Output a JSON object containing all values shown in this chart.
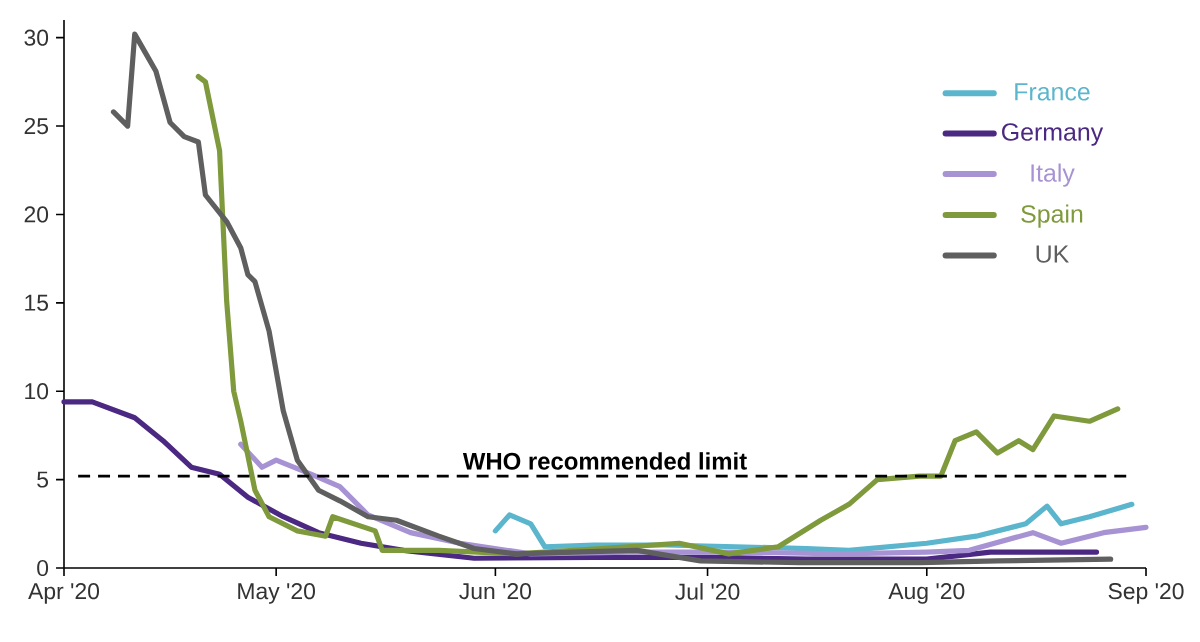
{
  "chart_data": {
    "type": "line",
    "xlim": [
      "2020-04-01",
      "2020-09-01"
    ],
    "xticks": [
      {
        "value": "2020-04-01",
        "label": "Apr '20"
      },
      {
        "value": "2020-05-01",
        "label": "May '20"
      },
      {
        "value": "2020-06-01",
        "label": "Jun '20"
      },
      {
        "value": "2020-07-01",
        "label": "Jul '20"
      },
      {
        "value": "2020-08-01",
        "label": "Aug '20"
      },
      {
        "value": "2020-09-01",
        "label": "Sep '20"
      }
    ],
    "ylim": [
      0,
      31
    ],
    "yticks": [
      0,
      5,
      10,
      15,
      20,
      25,
      30
    ],
    "grid": false,
    "legend": "top right",
    "marker": "none",
    "line_style": "solid",
    "ref_lines": [
      {
        "axis": "y",
        "value": 5.2,
        "label": "WHO recommended limit",
        "color": "#000000",
        "line_style": "dashed"
      }
    ],
    "series": [
      {
        "name": "France",
        "color": "#5bb5cc",
        "x": [
          "2020-06-01",
          "2020-06-03",
          "2020-06-06",
          "2020-06-08",
          "2020-06-15",
          "2020-06-25",
          "2020-07-05",
          "2020-07-15",
          "2020-07-21",
          "2020-08-01",
          "2020-08-08",
          "2020-08-15",
          "2020-08-18",
          "2020-08-20",
          "2020-08-24",
          "2020-08-30"
        ],
        "values": [
          2.1,
          3.0,
          2.5,
          1.2,
          1.3,
          1.3,
          1.2,
          1.1,
          1.0,
          1.4,
          1.8,
          2.5,
          3.5,
          2.5,
          2.9,
          3.6
        ]
      },
      {
        "name": "Germany",
        "color": "#4b2882",
        "x": [
          "2020-04-01",
          "2020-04-05",
          "2020-04-11",
          "2020-04-15",
          "2020-04-19",
          "2020-04-23",
          "2020-04-27",
          "2020-05-02",
          "2020-05-07",
          "2020-05-13",
          "2020-05-19",
          "2020-05-29",
          "2020-06-15",
          "2020-07-01",
          "2020-07-15",
          "2020-08-01",
          "2020-08-10",
          "2020-08-25"
        ],
        "values": [
          9.4,
          9.4,
          8.5,
          7.2,
          5.7,
          5.3,
          4.0,
          2.9,
          2.0,
          1.4,
          1.0,
          0.55,
          0.6,
          0.6,
          0.5,
          0.5,
          0.9,
          0.9
        ]
      },
      {
        "name": "Italy",
        "color": "#a793d3",
        "x": [
          "2020-04-26",
          "2020-04-29",
          "2020-05-01",
          "2020-05-06",
          "2020-05-10",
          "2020-05-14",
          "2020-05-20",
          "2020-05-27",
          "2020-06-06",
          "2020-06-20",
          "2020-07-05",
          "2020-07-20",
          "2020-08-01",
          "2020-08-07",
          "2020-08-16",
          "2020-08-20",
          "2020-08-26",
          "2020-09-01"
        ],
        "values": [
          7.0,
          5.7,
          6.1,
          5.3,
          4.6,
          3.0,
          2.0,
          1.4,
          0.8,
          0.9,
          0.9,
          0.8,
          0.9,
          1.0,
          2.0,
          1.4,
          2.0,
          2.3
        ]
      },
      {
        "name": "Spain",
        "color": "#7f9a3c",
        "x": [
          "2020-04-20",
          "2020-04-21",
          "2020-04-23",
          "2020-04-24",
          "2020-04-25",
          "2020-04-26",
          "2020-04-28",
          "2020-04-30",
          "2020-05-04",
          "2020-05-08",
          "2020-05-09",
          "2020-05-15",
          "2020-05-16",
          "2020-05-24",
          "2020-06-04",
          "2020-06-16",
          "2020-06-27",
          "2020-07-04",
          "2020-07-11",
          "2020-07-17",
          "2020-07-21",
          "2020-07-25",
          "2020-07-31",
          "2020-08-03",
          "2020-08-05",
          "2020-08-08",
          "2020-08-11",
          "2020-08-14",
          "2020-08-16",
          "2020-08-19",
          "2020-08-24",
          "2020-08-28"
        ],
        "values": [
          27.8,
          27.5,
          23.6,
          15.1,
          10.0,
          8.3,
          4.4,
          2.9,
          2.1,
          1.8,
          2.9,
          2.1,
          1.0,
          1.0,
          0.8,
          1.1,
          1.4,
          0.8,
          1.2,
          2.7,
          3.6,
          5.0,
          5.2,
          5.2,
          7.2,
          7.7,
          6.5,
          7.2,
          6.7,
          8.6,
          8.3,
          9.0
        ]
      },
      {
        "name": "UK",
        "color": "#5f5f5f",
        "x": [
          "2020-04-08",
          "2020-04-10",
          "2020-04-11",
          "2020-04-13",
          "2020-04-14",
          "2020-04-16",
          "2020-04-18",
          "2020-04-20",
          "2020-04-21",
          "2020-04-24",
          "2020-04-26",
          "2020-04-27",
          "2020-04-28",
          "2020-04-30",
          "2020-05-02",
          "2020-05-04",
          "2020-05-07",
          "2020-05-10",
          "2020-05-14",
          "2020-05-18",
          "2020-05-24",
          "2020-05-29",
          "2020-06-04",
          "2020-06-12",
          "2020-06-21",
          "2020-06-30",
          "2020-07-14",
          "2020-07-31",
          "2020-08-11",
          "2020-08-27"
        ],
        "values": [
          25.8,
          25.0,
          30.2,
          28.8,
          28.1,
          25.2,
          24.4,
          24.1,
          21.1,
          19.6,
          18.1,
          16.6,
          16.2,
          13.4,
          8.9,
          6.1,
          4.4,
          3.8,
          2.9,
          2.7,
          1.8,
          1.1,
          0.8,
          0.9,
          1.0,
          0.4,
          0.3,
          0.3,
          0.4,
          0.5
        ]
      }
    ]
  }
}
